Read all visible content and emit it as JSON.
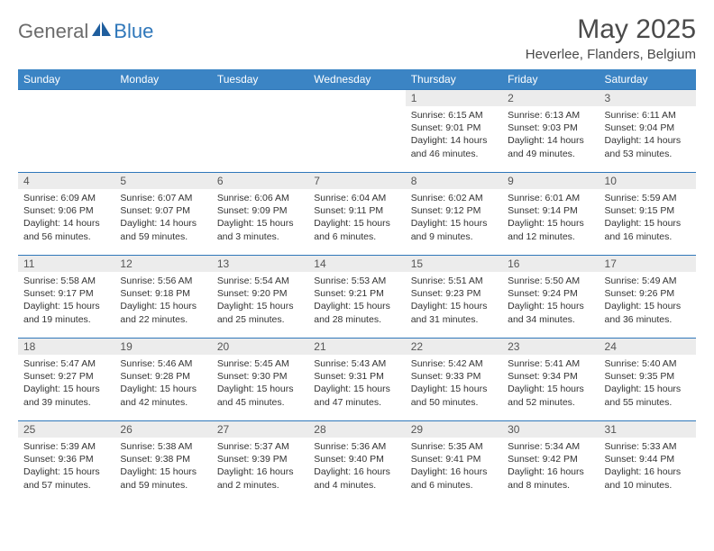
{
  "brand": {
    "general": "General",
    "blue": "Blue"
  },
  "title": "May 2025",
  "location": "Heverlee, Flanders, Belgium",
  "colors": {
    "header_bg": "#3b84c4",
    "header_text": "#ffffff",
    "row_border": "#2f77ba",
    "daynum_bg": "#ececec",
    "logo_gray": "#6b6b6b",
    "logo_blue": "#2f77ba"
  },
  "weekdays": [
    "Sunday",
    "Monday",
    "Tuesday",
    "Wednesday",
    "Thursday",
    "Friday",
    "Saturday"
  ],
  "weeks": [
    [
      {
        "empty": true
      },
      {
        "empty": true
      },
      {
        "empty": true
      },
      {
        "empty": true
      },
      {
        "n": "1",
        "sunrise": "6:15 AM",
        "sunset": "9:01 PM",
        "dl": "14 hours and 46 minutes."
      },
      {
        "n": "2",
        "sunrise": "6:13 AM",
        "sunset": "9:03 PM",
        "dl": "14 hours and 49 minutes."
      },
      {
        "n": "3",
        "sunrise": "6:11 AM",
        "sunset": "9:04 PM",
        "dl": "14 hours and 53 minutes."
      }
    ],
    [
      {
        "n": "4",
        "sunrise": "6:09 AM",
        "sunset": "9:06 PM",
        "dl": "14 hours and 56 minutes."
      },
      {
        "n": "5",
        "sunrise": "6:07 AM",
        "sunset": "9:07 PM",
        "dl": "14 hours and 59 minutes."
      },
      {
        "n": "6",
        "sunrise": "6:06 AM",
        "sunset": "9:09 PM",
        "dl": "15 hours and 3 minutes."
      },
      {
        "n": "7",
        "sunrise": "6:04 AM",
        "sunset": "9:11 PM",
        "dl": "15 hours and 6 minutes."
      },
      {
        "n": "8",
        "sunrise": "6:02 AM",
        "sunset": "9:12 PM",
        "dl": "15 hours and 9 minutes."
      },
      {
        "n": "9",
        "sunrise": "6:01 AM",
        "sunset": "9:14 PM",
        "dl": "15 hours and 12 minutes."
      },
      {
        "n": "10",
        "sunrise": "5:59 AM",
        "sunset": "9:15 PM",
        "dl": "15 hours and 16 minutes."
      }
    ],
    [
      {
        "n": "11",
        "sunrise": "5:58 AM",
        "sunset": "9:17 PM",
        "dl": "15 hours and 19 minutes."
      },
      {
        "n": "12",
        "sunrise": "5:56 AM",
        "sunset": "9:18 PM",
        "dl": "15 hours and 22 minutes."
      },
      {
        "n": "13",
        "sunrise": "5:54 AM",
        "sunset": "9:20 PM",
        "dl": "15 hours and 25 minutes."
      },
      {
        "n": "14",
        "sunrise": "5:53 AM",
        "sunset": "9:21 PM",
        "dl": "15 hours and 28 minutes."
      },
      {
        "n": "15",
        "sunrise": "5:51 AM",
        "sunset": "9:23 PM",
        "dl": "15 hours and 31 minutes."
      },
      {
        "n": "16",
        "sunrise": "5:50 AM",
        "sunset": "9:24 PM",
        "dl": "15 hours and 34 minutes."
      },
      {
        "n": "17",
        "sunrise": "5:49 AM",
        "sunset": "9:26 PM",
        "dl": "15 hours and 36 minutes."
      }
    ],
    [
      {
        "n": "18",
        "sunrise": "5:47 AM",
        "sunset": "9:27 PM",
        "dl": "15 hours and 39 minutes."
      },
      {
        "n": "19",
        "sunrise": "5:46 AM",
        "sunset": "9:28 PM",
        "dl": "15 hours and 42 minutes."
      },
      {
        "n": "20",
        "sunrise": "5:45 AM",
        "sunset": "9:30 PM",
        "dl": "15 hours and 45 minutes."
      },
      {
        "n": "21",
        "sunrise": "5:43 AM",
        "sunset": "9:31 PM",
        "dl": "15 hours and 47 minutes."
      },
      {
        "n": "22",
        "sunrise": "5:42 AM",
        "sunset": "9:33 PM",
        "dl": "15 hours and 50 minutes."
      },
      {
        "n": "23",
        "sunrise": "5:41 AM",
        "sunset": "9:34 PM",
        "dl": "15 hours and 52 minutes."
      },
      {
        "n": "24",
        "sunrise": "5:40 AM",
        "sunset": "9:35 PM",
        "dl": "15 hours and 55 minutes."
      }
    ],
    [
      {
        "n": "25",
        "sunrise": "5:39 AM",
        "sunset": "9:36 PM",
        "dl": "15 hours and 57 minutes."
      },
      {
        "n": "26",
        "sunrise": "5:38 AM",
        "sunset": "9:38 PM",
        "dl": "15 hours and 59 minutes."
      },
      {
        "n": "27",
        "sunrise": "5:37 AM",
        "sunset": "9:39 PM",
        "dl": "16 hours and 2 minutes."
      },
      {
        "n": "28",
        "sunrise": "5:36 AM",
        "sunset": "9:40 PM",
        "dl": "16 hours and 4 minutes."
      },
      {
        "n": "29",
        "sunrise": "5:35 AM",
        "sunset": "9:41 PM",
        "dl": "16 hours and 6 minutes."
      },
      {
        "n": "30",
        "sunrise": "5:34 AM",
        "sunset": "9:42 PM",
        "dl": "16 hours and 8 minutes."
      },
      {
        "n": "31",
        "sunrise": "5:33 AM",
        "sunset": "9:44 PM",
        "dl": "16 hours and 10 minutes."
      }
    ]
  ],
  "labels": {
    "sunrise": "Sunrise:",
    "sunset": "Sunset:",
    "daylight": "Daylight:"
  }
}
